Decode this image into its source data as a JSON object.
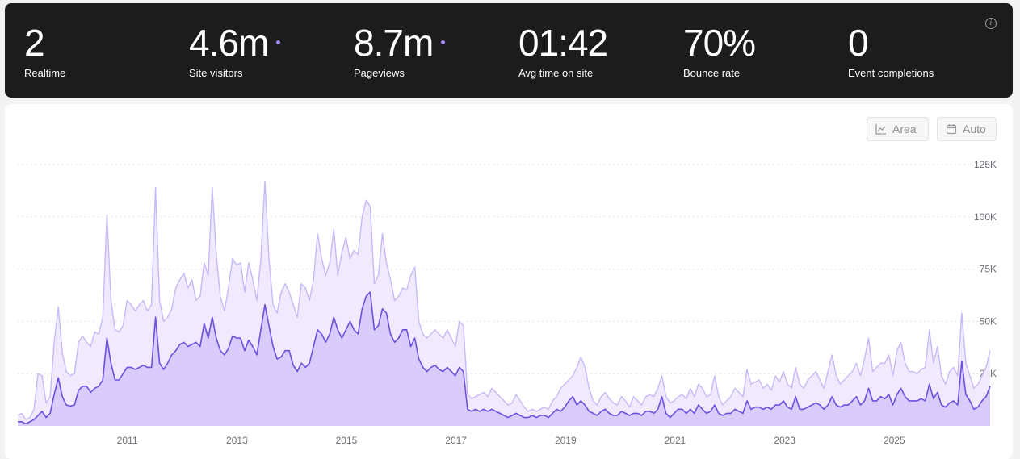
{
  "stats": [
    {
      "value": "2",
      "label": "Realtime",
      "dot": false
    },
    {
      "value": "4.6m",
      "label": "Site visitors",
      "dot": true
    },
    {
      "value": "8.7m",
      "label": "Pageviews",
      "dot": true
    },
    {
      "value": "01:42",
      "label": "Avg time on site",
      "dot": false
    },
    {
      "value": "70%",
      "label": "Bounce rate",
      "dot": false
    },
    {
      "value": "0",
      "label": "Event completions",
      "dot": false
    }
  ],
  "controls": {
    "chart_type_label": "Area",
    "interval_label": "Auto",
    "chart_type_icon": "area-chart-icon",
    "interval_icon": "calendar-icon",
    "info_icon": "info-icon"
  },
  "colors": {
    "pageviews_fill": "#efeafd",
    "pageviews_line": "#c9b8f7",
    "visitors_fill": "#d9ccfb",
    "visitors_line": "#6d4fe0",
    "accent_dot": "#a78bfa"
  },
  "chart_data": {
    "type": "area",
    "title": "",
    "xlabel": "",
    "ylabel": "",
    "x_start": "2009-01",
    "x_end": "2026-10",
    "x_ticks": [
      "2011",
      "2013",
      "2015",
      "2017",
      "2019",
      "2021",
      "2023",
      "2025"
    ],
    "y_ticks": [
      "25K",
      "50K",
      "75K",
      "100K",
      "125K"
    ],
    "ylim": [
      0,
      125000
    ],
    "grid": true,
    "legend": "none",
    "series": [
      {
        "key": "pageviews",
        "values": [
          5000,
          6000,
          3000,
          4000,
          8000,
          25000,
          24000,
          11000,
          14000,
          40000,
          57000,
          35000,
          26000,
          24000,
          25000,
          40000,
          43000,
          40000,
          38000,
          45000,
          44000,
          52000,
          101000,
          60000,
          46000,
          45000,
          48000,
          60000,
          58000,
          55000,
          58000,
          60000,
          55000,
          58000,
          114000,
          60000,
          50000,
          52000,
          56000,
          66000,
          70000,
          73000,
          66000,
          70000,
          60000,
          62000,
          78000,
          72000,
          114000,
          82000,
          62000,
          55000,
          66000,
          80000,
          77000,
          78000,
          64000,
          78000,
          70000,
          60000,
          80000,
          117000,
          80000,
          58000,
          54000,
          64000,
          68000,
          64000,
          58000,
          52000,
          68000,
          66000,
          60000,
          70000,
          92000,
          80000,
          72000,
          78000,
          94000,
          72000,
          83000,
          90000,
          80000,
          84000,
          82000,
          100000,
          108000,
          105000,
          68000,
          72000,
          92000,
          78000,
          70000,
          60000,
          62000,
          66000,
          65000,
          72000,
          76000,
          50000,
          44000,
          42000,
          44000,
          46000,
          44000,
          42000,
          46000,
          42000,
          38000,
          50000,
          48000,
          15000,
          13000,
          14000,
          15000,
          16000,
          14000,
          18000,
          16000,
          14000,
          12000,
          10000,
          11000,
          15000,
          12000,
          9000,
          7000,
          8000,
          7000,
          8000,
          9000,
          8000,
          12000,
          14000,
          18000,
          20000,
          22000,
          24000,
          28000,
          33000,
          28000,
          18000,
          12000,
          10000,
          14000,
          16000,
          13000,
          11000,
          10000,
          14000,
          12000,
          9000,
          14000,
          12000,
          10000,
          14000,
          15000,
          14000,
          18000,
          24000,
          14000,
          11000,
          12000,
          14000,
          15000,
          13000,
          18000,
          14000,
          20000,
          18000,
          14000,
          15000,
          24000,
          14000,
          10000,
          12000,
          14000,
          18000,
          16000,
          14000,
          27000,
          20000,
          21000,
          22000,
          18000,
          20000,
          17000,
          24000,
          21000,
          26000,
          20000,
          18000,
          28000,
          20000,
          18000,
          22000,
          24000,
          26000,
          22000,
          18000,
          26000,
          34000,
          24000,
          20000,
          22000,
          24000,
          26000,
          30000,
          24000,
          32000,
          42000,
          26000,
          28000,
          30000,
          30000,
          34000,
          24000,
          36000,
          40000,
          30000,
          26000,
          26000,
          25000,
          27000,
          28000,
          46000,
          30000,
          38000,
          24000,
          20000,
          26000,
          28000,
          24000,
          54000,
          30000,
          24000,
          18000,
          20000,
          24000,
          28000,
          36000
        ],
        "name": ""
      },
      {
        "key": "visitors",
        "values": [
          2000,
          2000,
          1000,
          2000,
          3000,
          5000,
          7000,
          4000,
          6000,
          15000,
          23000,
          14000,
          10000,
          9500,
          10000,
          17000,
          19000,
          19000,
          16000,
          18000,
          19000,
          22000,
          42000,
          30000,
          22000,
          22000,
          25000,
          28000,
          28000,
          27000,
          28000,
          29000,
          28000,
          28000,
          52000,
          30000,
          27000,
          30000,
          34000,
          36000,
          39000,
          40000,
          38000,
          39000,
          40000,
          38000,
          49000,
          42000,
          52000,
          42000,
          36000,
          34000,
          37000,
          43000,
          42000,
          42000,
          36000,
          41000,
          38000,
          34000,
          46000,
          58000,
          48000,
          38000,
          32000,
          33000,
          36000,
          36000,
          29000,
          26000,
          30000,
          28000,
          30000,
          38000,
          46000,
          44000,
          40000,
          44000,
          52000,
          46000,
          42000,
          46000,
          50000,
          46000,
          44000,
          56000,
          62000,
          64000,
          46000,
          48000,
          56000,
          54000,
          44000,
          40000,
          42000,
          46000,
          46000,
          38000,
          42000,
          32000,
          28000,
          26000,
          28000,
          29000,
          27000,
          26000,
          28000,
          26000,
          24000,
          28000,
          26000,
          8000,
          7000,
          8000,
          7000,
          8000,
          7000,
          8000,
          7000,
          6000,
          5000,
          4000,
          5000,
          6000,
          5000,
          4000,
          4000,
          5000,
          4000,
          5000,
          5000,
          4000,
          6000,
          8000,
          7000,
          9000,
          12000,
          14000,
          10000,
          12000,
          10000,
          7000,
          6000,
          5000,
          7000,
          8000,
          6000,
          5000,
          5000,
          7000,
          6000,
          5000,
          6000,
          6000,
          5000,
          7000,
          7000,
          6000,
          8000,
          14000,
          6000,
          4000,
          6000,
          8000,
          8000,
          6000,
          8000,
          6000,
          10000,
          8000,
          6000,
          7000,
          10000,
          6000,
          5000,
          6000,
          6000,
          8000,
          7000,
          6000,
          12000,
          8000,
          9000,
          9000,
          8000,
          9000,
          8000,
          10000,
          10000,
          12000,
          9000,
          8000,
          14000,
          8000,
          8000,
          9000,
          10000,
          11000,
          10000,
          8000,
          10000,
          14000,
          10000,
          9000,
          10000,
          10000,
          12000,
          14000,
          10000,
          12000,
          18000,
          12000,
          12000,
          14000,
          13000,
          15000,
          10000,
          15000,
          18000,
          14000,
          12000,
          12000,
          12000,
          13000,
          12000,
          20000,
          13000,
          16000,
          10000,
          9000,
          11000,
          12000,
          10000,
          31000,
          15000,
          12000,
          8000,
          9000,
          12000,
          14000,
          19000
        ],
        "name": ""
      }
    ]
  }
}
